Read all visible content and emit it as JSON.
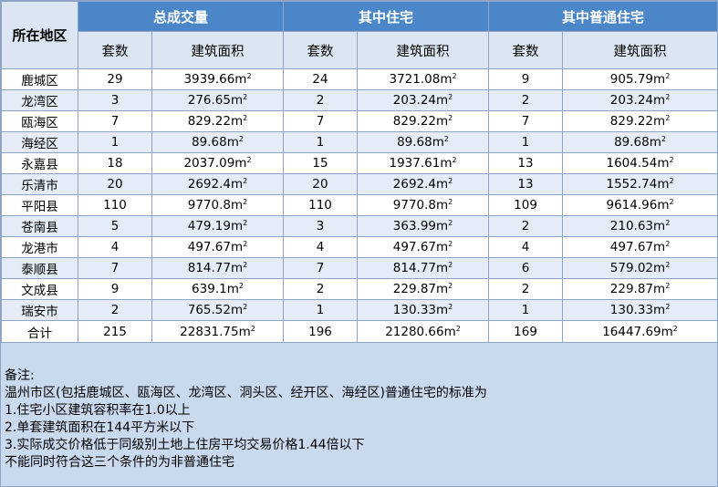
{
  "headers": {
    "region": "所在地区",
    "group_total": "总成交量",
    "group_residential": "其中住宅",
    "group_ordinary": "其中普通住宅",
    "col_count": "套数",
    "col_area": "建筑面积"
  },
  "area_unit": "m",
  "area_unit_sup": "2",
  "rows": [
    {
      "region": "鹿城区",
      "t_count": "29",
      "t_area": "3939.66",
      "r_count": "24",
      "r_area": "3721.08",
      "o_count": "9",
      "o_area": "905.79"
    },
    {
      "region": "龙湾区",
      "t_count": "3",
      "t_area": "276.65",
      "r_count": "2",
      "r_area": "203.24",
      "o_count": "2",
      "o_area": "203.24"
    },
    {
      "region": "瓯海区",
      "t_count": "7",
      "t_area": "829.22",
      "r_count": "7",
      "r_area": "829.22",
      "o_count": "7",
      "o_area": "829.22"
    },
    {
      "region": "海经区",
      "t_count": "1",
      "t_area": "89.68",
      "r_count": "1",
      "r_area": "89.68",
      "o_count": "1",
      "o_area": "89.68"
    },
    {
      "region": "永嘉县",
      "t_count": "18",
      "t_area": "2037.09",
      "r_count": "15",
      "r_area": "1937.61",
      "o_count": "13",
      "o_area": "1604.54"
    },
    {
      "region": "乐清市",
      "t_count": "20",
      "t_area": "2692.4",
      "r_count": "20",
      "r_area": "2692.4",
      "o_count": "13",
      "o_area": "1552.74"
    },
    {
      "region": "平阳县",
      "t_count": "110",
      "t_area": "9770.8",
      "r_count": "110",
      "r_area": "9770.8",
      "o_count": "109",
      "o_area": "9614.96"
    },
    {
      "region": "苍南县",
      "t_count": "5",
      "t_area": "479.19",
      "r_count": "3",
      "r_area": "363.99",
      "o_count": "2",
      "o_area": "210.63"
    },
    {
      "region": "龙港市",
      "t_count": "4",
      "t_area": "497.67",
      "r_count": "4",
      "r_area": "497.67",
      "o_count": "4",
      "o_area": "497.67"
    },
    {
      "region": "泰顺县",
      "t_count": "7",
      "t_area": "814.77",
      "r_count": "7",
      "r_area": "814.77",
      "o_count": "6",
      "o_area": "579.02"
    },
    {
      "region": "文成县",
      "t_count": "9",
      "t_area": "639.1",
      "r_count": "2",
      "r_area": "229.87",
      "o_count": "2",
      "o_area": "229.87"
    },
    {
      "region": "瑞安市",
      "t_count": "2",
      "t_area": "765.52",
      "r_count": "1",
      "r_area": "130.33",
      "o_count": "1",
      "o_area": "130.33"
    }
  ],
  "total": {
    "region": "合计",
    "t_count": "215",
    "t_area": "22831.75",
    "r_count": "196",
    "r_area": "21280.66",
    "o_count": "169",
    "o_area": "16447.69"
  },
  "notes": [
    "备注:",
    "温州市区(包括鹿城区、瓯海区、龙湾区、洞头区、经开区、海经区)普通住宅的标准为",
    "1.住宅小区建筑容积率在1.0以上",
    "2.单套建筑面积在144平方米以下",
    "3.实际成交价格低于同级别土地上住房平均交易价格1.44倍以下",
    "不能同时符合这三个条件的为非普通住宅"
  ]
}
